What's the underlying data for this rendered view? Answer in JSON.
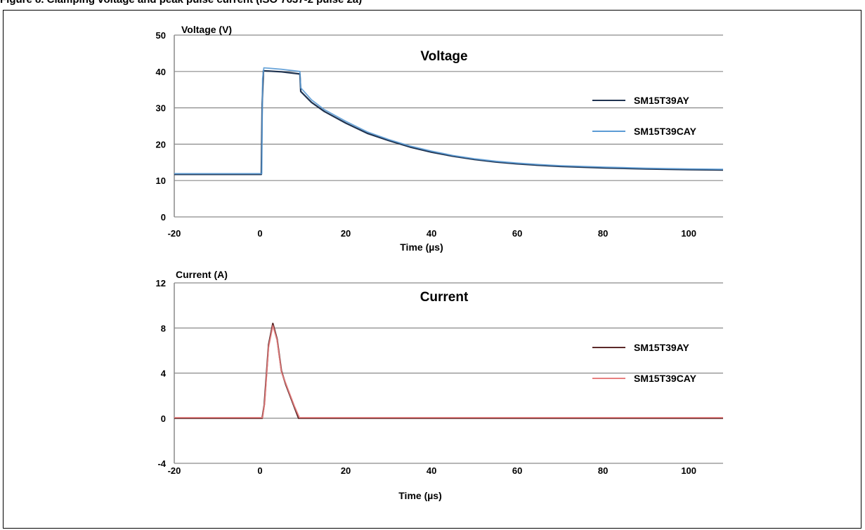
{
  "figure": {
    "caption": "Figure 8. Clamping voltage and peak pulse current (ISO 7637-2 pulse 2a)"
  },
  "chart_data": [
    {
      "type": "line",
      "title": "Voltage",
      "ylabel": "Voltage (V)",
      "xlabel": "Time (µs)",
      "xlim": [
        -20,
        108
      ],
      "ylim": [
        0,
        50
      ],
      "x_ticks": [
        -20,
        0,
        20,
        40,
        60,
        80,
        100
      ],
      "y_ticks": [
        0,
        10,
        20,
        30,
        40,
        50
      ],
      "grid": "horizontal",
      "legend_position": "right",
      "series": [
        {
          "name": "SM15T39AY",
          "color": "#1f3350",
          "points": [
            [
              -20,
              11.7
            ],
            [
              0.3,
              11.7
            ],
            [
              0.5,
              31
            ],
            [
              0.8,
              40.2
            ],
            [
              5,
              39.9
            ],
            [
              9.3,
              39.3
            ],
            [
              9.5,
              34.5
            ],
            [
              12,
              31.5
            ],
            [
              15,
              29
            ],
            [
              20,
              25.8
            ],
            [
              25,
              23
            ],
            [
              30,
              21
            ],
            [
              35,
              19.2
            ],
            [
              40,
              17.8
            ],
            [
              45,
              16.7
            ],
            [
              50,
              15.8
            ],
            [
              55,
              15.1
            ],
            [
              60,
              14.6
            ],
            [
              65,
              14.2
            ],
            [
              70,
              13.9
            ],
            [
              80,
              13.5
            ],
            [
              90,
              13.2
            ],
            [
              100,
              13.0
            ],
            [
              108,
              12.9
            ]
          ]
        },
        {
          "name": "SM15T39CAY",
          "color": "#5b9bd5",
          "points": [
            [
              -20,
              11.9
            ],
            [
              0.4,
              11.9
            ],
            [
              0.6,
              38
            ],
            [
              0.9,
              41
            ],
            [
              5,
              40.6
            ],
            [
              9.3,
              40.0
            ],
            [
              9.5,
              35.5
            ],
            [
              12,
              32.2
            ],
            [
              15,
              29.5
            ],
            [
              20,
              26.3
            ],
            [
              25,
              23.4
            ],
            [
              30,
              21.3
            ],
            [
              35,
              19.5
            ],
            [
              40,
              18.1
            ],
            [
              45,
              16.9
            ],
            [
              50,
              16.0
            ],
            [
              55,
              15.3
            ],
            [
              60,
              14.8
            ],
            [
              65,
              14.4
            ],
            [
              70,
              14.1
            ],
            [
              80,
              13.7
            ],
            [
              90,
              13.4
            ],
            [
              100,
              13.2
            ],
            [
              108,
              13.1
            ]
          ]
        }
      ]
    },
    {
      "type": "line",
      "title": "Current",
      "ylabel": "Current (A)",
      "xlabel": "Time (µs)",
      "xlim": [
        -20,
        108
      ],
      "ylim": [
        -4,
        12
      ],
      "x_ticks": [
        -20,
        0,
        20,
        40,
        60,
        80,
        100
      ],
      "y_ticks": [
        -4,
        0,
        4,
        8,
        12
      ],
      "grid": "horizontal",
      "legend_position": "right",
      "series": [
        {
          "name": "SM15T39AY",
          "color": "#5c2a2a",
          "points": [
            [
              -20,
              0
            ],
            [
              0.5,
              0
            ],
            [
              1,
              1.2
            ],
            [
              2,
              6.5
            ],
            [
              3,
              8.4
            ],
            [
              4,
              7
            ],
            [
              5,
              4.2
            ],
            [
              6,
              3
            ],
            [
              7,
              2
            ],
            [
              8,
              1
            ],
            [
              9,
              0
            ],
            [
              108,
              0
            ]
          ]
        },
        {
          "name": "SM15T39CAY",
          "color": "#e88080",
          "points": [
            [
              -20,
              0.05
            ],
            [
              0.6,
              0.05
            ],
            [
              1.1,
              1.4
            ],
            [
              2,
              6.3
            ],
            [
              3,
              8.2
            ],
            [
              4,
              6.9
            ],
            [
              5,
              4.1
            ],
            [
              6,
              3.1
            ],
            [
              7,
              2.1
            ],
            [
              8,
              1.1
            ],
            [
              9.2,
              0.05
            ],
            [
              108,
              0.05
            ]
          ]
        }
      ]
    }
  ]
}
